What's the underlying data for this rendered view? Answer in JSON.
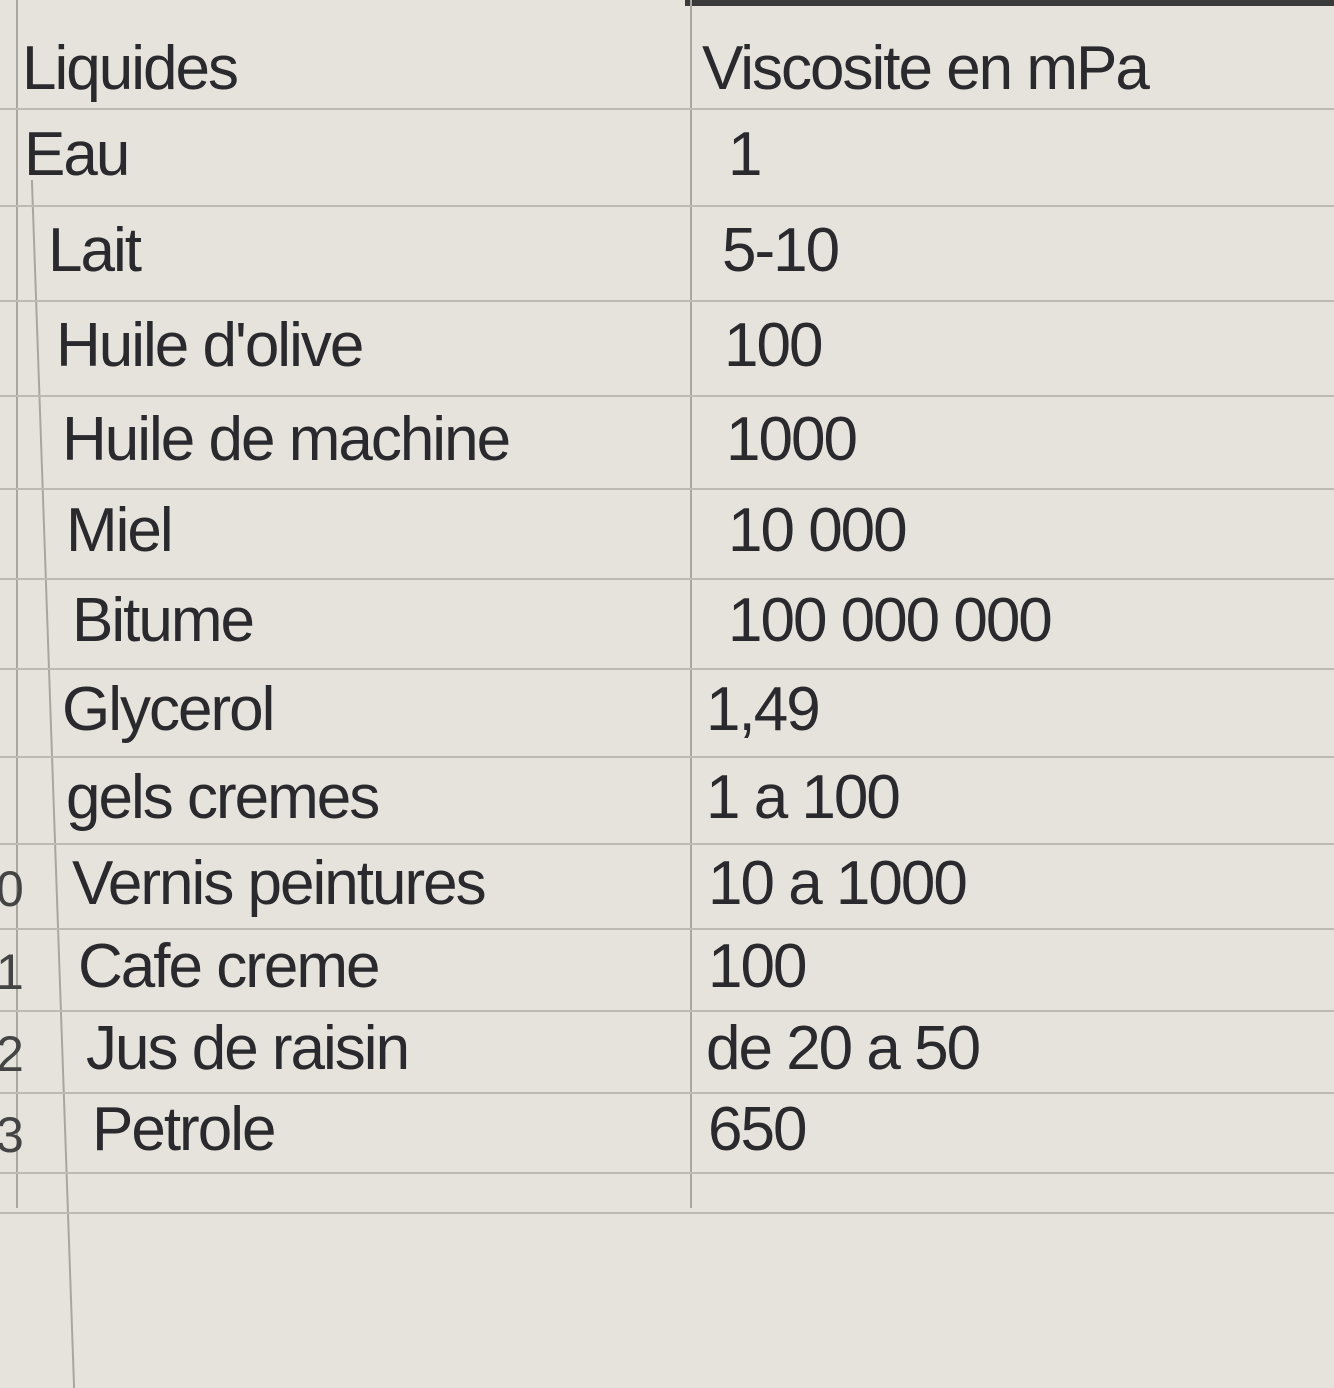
{
  "sheet": {
    "headers": [
      "Liquides",
      "Viscosite en mPa"
    ],
    "rows": [
      {
        "row_number": "",
        "liquide": "Eau",
        "viscosite": "1"
      },
      {
        "row_number": "",
        "liquide": "Lait",
        "viscosite": "5-10"
      },
      {
        "row_number": "",
        "liquide": "Huile d'olive",
        "viscosite": "100"
      },
      {
        "row_number": "",
        "liquide": "Huile de machine",
        "viscosite": "1000"
      },
      {
        "row_number": "",
        "liquide": "Miel",
        "viscosite": "10 000"
      },
      {
        "row_number": "",
        "liquide": "Bitume",
        "viscosite": "100 000 000"
      },
      {
        "row_number": "",
        "liquide": "Glycerol",
        "viscosite": "1,49"
      },
      {
        "row_number": "",
        "liquide": "gels cremes",
        "viscosite": "1 a 100"
      },
      {
        "row_number": "0",
        "liquide": "Vernis peintures",
        "viscosite": "10 a 1000"
      },
      {
        "row_number": "1",
        "liquide": "Cafe creme",
        "viscosite": "100"
      },
      {
        "row_number": "2",
        "liquide": "Jus de raisin",
        "viscosite": "de 20 a 50"
      },
      {
        "row_number": "3",
        "liquide": "Petrole",
        "viscosite": "650"
      }
    ]
  }
}
